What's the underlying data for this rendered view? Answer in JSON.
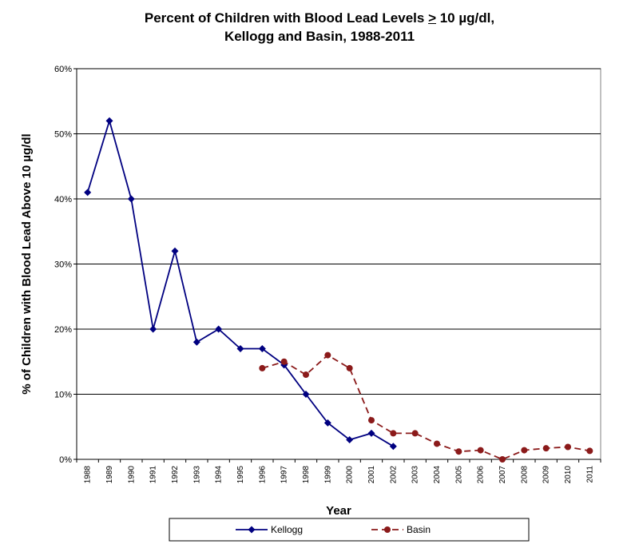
{
  "chart_data": {
    "type": "line",
    "title_line1_pre": "Percent of Children with Blood Lead Levels ",
    "title_line1_sym": ">",
    "title_line1_post": " 10 µg/dl,",
    "title_line2": "Kellogg and Basin, 1988-2011",
    "xlabel": "Year",
    "ylabel": "% of Children with Blood Lead Above 10 µg/dl",
    "ylim": [
      0,
      60
    ],
    "yticks": [
      "0%",
      "10%",
      "20%",
      "30%",
      "40%",
      "50%",
      "60%"
    ],
    "categories": [
      "1988",
      "1989",
      "1990",
      "1991",
      "1992",
      "1993",
      "1994",
      "1995",
      "1996",
      "1997",
      "1998",
      "1999",
      "2000",
      "2001",
      "2002",
      "2003",
      "2004",
      "2005",
      "2006",
      "2007",
      "2008",
      "2009",
      "2010",
      "2011"
    ],
    "grid": "horizontal",
    "legend_position": "bottom",
    "series": [
      {
        "name": "Kellogg",
        "color": "#000080",
        "marker": "diamond",
        "line": "solid",
        "values": [
          41,
          52,
          40,
          20,
          32,
          18,
          20,
          17,
          17,
          14.5,
          10,
          5.6,
          3,
          4,
          2,
          null,
          null,
          null,
          null,
          null,
          null,
          null,
          null,
          null
        ]
      },
      {
        "name": "Basin",
        "color": "#8B1A1A",
        "marker": "circle",
        "line": "dashed",
        "values": [
          null,
          null,
          null,
          null,
          null,
          null,
          null,
          null,
          14,
          15,
          13,
          16,
          14,
          6,
          4,
          4,
          2.4,
          1.2,
          1.4,
          0,
          1.4,
          1.7,
          1.9,
          1.3
        ]
      }
    ]
  }
}
